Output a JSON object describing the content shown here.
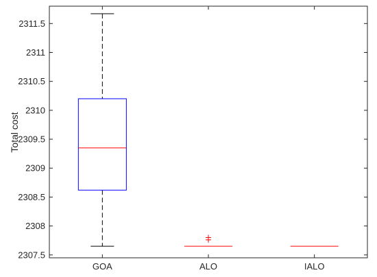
{
  "chart_data": {
    "type": "box",
    "ylabel": "Total cost",
    "xlabel": "",
    "title": "",
    "ylim": [
      2307.45,
      2311.8
    ],
    "yticks": [
      2307.5,
      2308,
      2308.5,
      2309,
      2309.5,
      2310,
      2310.5,
      2311,
      2311.5
    ],
    "ytick_labels": [
      "2307.5",
      "2308",
      "2308.5",
      "2309",
      "2309.5",
      "2310",
      "2310.5",
      "2311",
      "2311.5"
    ],
    "categories": [
      "GOA",
      "ALO",
      "IALO"
    ],
    "boxes": [
      {
        "category": "GOA",
        "min": 2307.65,
        "q1": 2308.62,
        "median": 2309.35,
        "q3": 2310.2,
        "max": 2311.67,
        "outliers": []
      },
      {
        "category": "ALO",
        "min": 2307.65,
        "q1": 2307.65,
        "median": 2307.65,
        "q3": 2307.65,
        "max": 2307.65,
        "outliers": [
          2307.76,
          2307.8
        ]
      },
      {
        "category": "IALO",
        "min": 2307.65,
        "q1": 2307.65,
        "median": 2307.65,
        "q3": 2307.65,
        "max": 2307.65,
        "outliers": []
      }
    ],
    "colors": {
      "box": "#0000ff",
      "median": "#ff0000",
      "whisker": "#000000",
      "outlier": "#ff0000",
      "axis": "#262626"
    },
    "grid": false
  }
}
